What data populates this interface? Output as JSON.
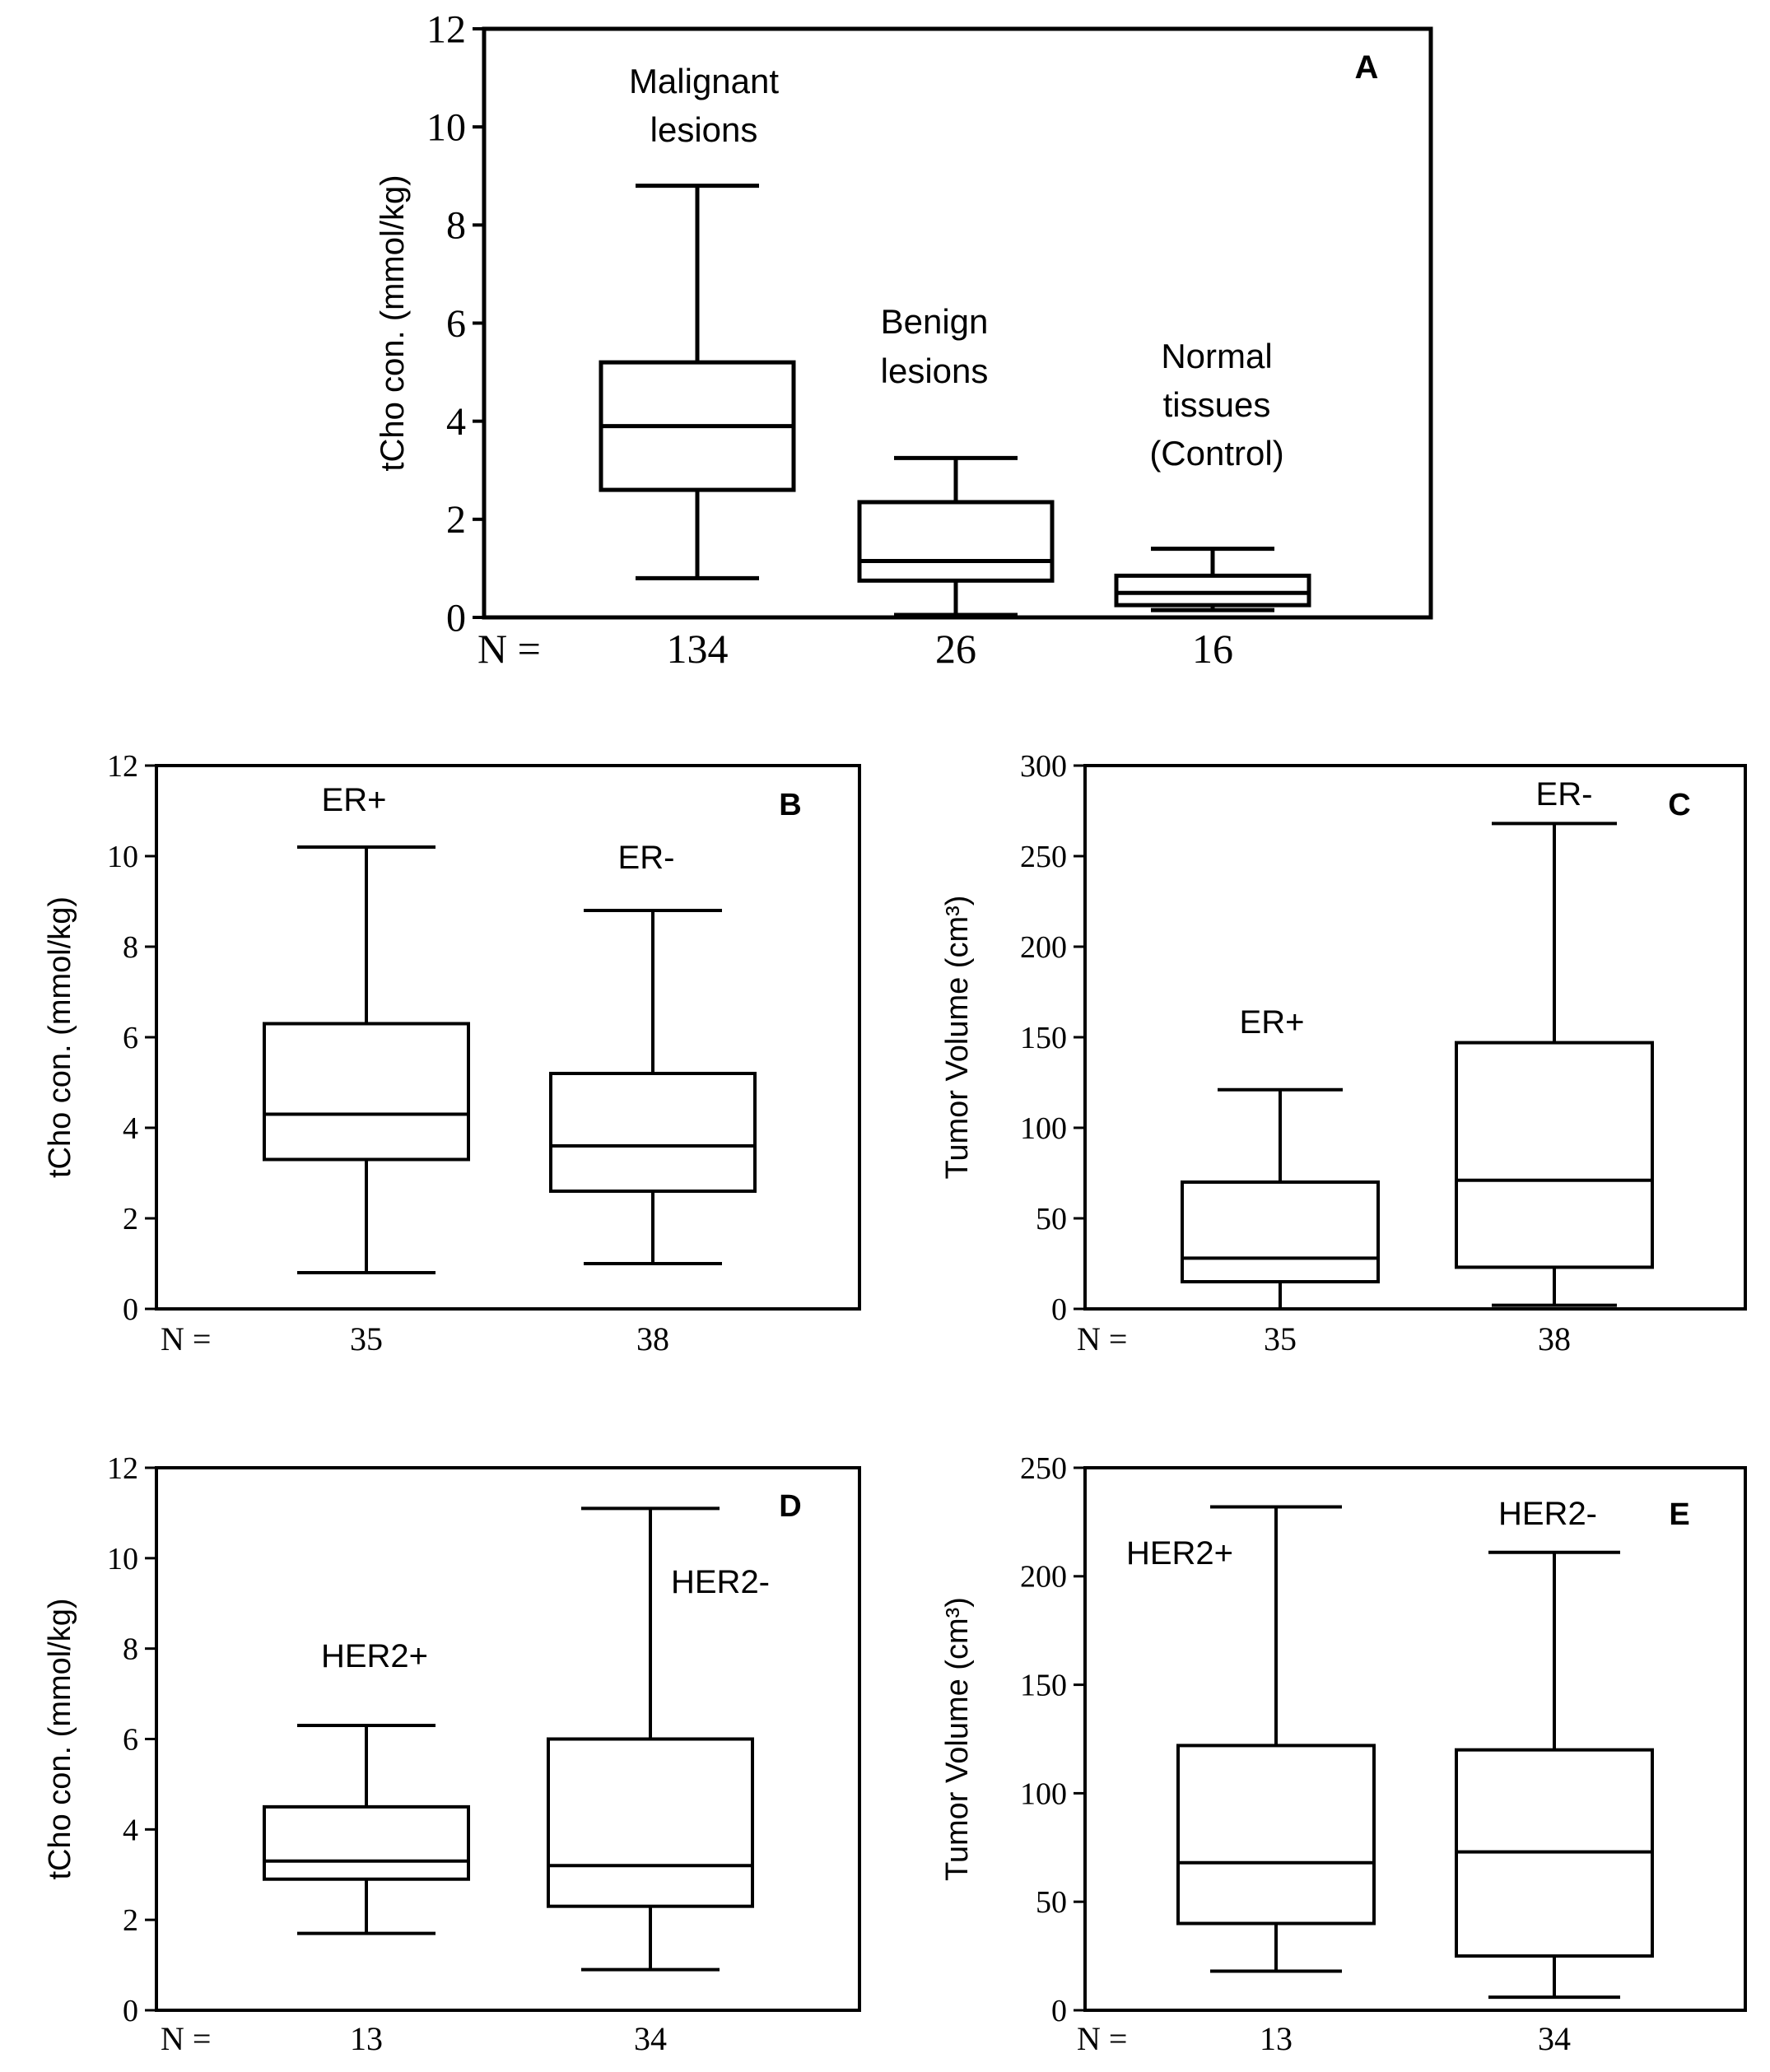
{
  "figure": {
    "colors": {
      "ink": "#000000",
      "background": "#ffffff"
    }
  },
  "chart_data": [
    {
      "id": "A",
      "type": "boxplot",
      "panel_label": "A",
      "ylabel": "tCho con.  (mmol/kg)",
      "ylim": [
        0,
        12
      ],
      "yticks": [
        0,
        2,
        4,
        6,
        8,
        10,
        12
      ],
      "n_label": "N =",
      "groups": [
        {
          "label_lines": [
            "Malignant",
            "lesions"
          ],
          "n": "134",
          "whisker_low": 0.8,
          "q1": 2.6,
          "median": 3.9,
          "q3": 5.2,
          "whisker_high": 8.8
        },
        {
          "label_lines": [
            "Benign",
            "lesions"
          ],
          "n": "26",
          "whisker_low": 0.05,
          "q1": 0.75,
          "median": 1.15,
          "q3": 2.35,
          "whisker_high": 3.25
        },
        {
          "label_lines": [
            "Normal",
            "tissues",
            "(Control)"
          ],
          "n": "16",
          "whisker_low": 0.15,
          "q1": 0.25,
          "median": 0.5,
          "q3": 0.85,
          "whisker_high": 1.4
        }
      ]
    },
    {
      "id": "B",
      "type": "boxplot",
      "panel_label": "B",
      "ylabel": "tCho con.  (mmol/kg)",
      "ylim": [
        0,
        12
      ],
      "yticks": [
        0,
        2,
        4,
        6,
        8,
        10,
        12
      ],
      "n_label": "N =",
      "groups": [
        {
          "label_lines": [
            "ER+"
          ],
          "n": "35",
          "whisker_low": 0.8,
          "q1": 3.3,
          "median": 4.3,
          "q3": 6.3,
          "whisker_high": 10.2
        },
        {
          "label_lines": [
            "ER-"
          ],
          "n": "38",
          "whisker_low": 1.0,
          "q1": 2.6,
          "median": 3.6,
          "q3": 5.2,
          "whisker_high": 8.8
        }
      ]
    },
    {
      "id": "C",
      "type": "boxplot",
      "panel_label": "C",
      "ylabel": "Tumor Volume  (cm³)",
      "ylim": [
        0,
        300
      ],
      "yticks": [
        0,
        50,
        100,
        150,
        200,
        250,
        300
      ],
      "n_label": "N =",
      "groups": [
        {
          "label_lines": [
            "ER+"
          ],
          "n": "35",
          "whisker_low": 0,
          "q1": 15,
          "median": 28,
          "q3": 70,
          "whisker_high": 121
        },
        {
          "label_lines": [
            "ER-"
          ],
          "n": "38",
          "whisker_low": 2,
          "q1": 23,
          "median": 71,
          "q3": 147,
          "whisker_high": 268
        }
      ]
    },
    {
      "id": "D",
      "type": "boxplot",
      "panel_label": "D",
      "ylabel": "tCho con.  (mmol/kg)",
      "ylim": [
        0,
        12
      ],
      "yticks": [
        0,
        2,
        4,
        6,
        8,
        10,
        12
      ],
      "n_label": "N =",
      "groups": [
        {
          "label_lines": [
            "HER2+"
          ],
          "n": "13",
          "whisker_low": 1.7,
          "q1": 2.9,
          "median": 3.3,
          "q3": 4.5,
          "whisker_high": 6.3
        },
        {
          "label_lines": [
            "HER2-"
          ],
          "n": "34",
          "whisker_low": 0.9,
          "q1": 2.3,
          "median": 3.2,
          "q3": 6.0,
          "whisker_high": 11.1
        }
      ]
    },
    {
      "id": "E",
      "type": "boxplot",
      "panel_label": "E",
      "ylabel": "Tumor Volume  (cm³)",
      "ylim": [
        0,
        250
      ],
      "yticks": [
        0,
        50,
        100,
        150,
        200,
        250
      ],
      "n_label": "N =",
      "groups": [
        {
          "label_lines": [
            "HER2+"
          ],
          "n": "13",
          "whisker_low": 18,
          "q1": 40,
          "median": 68,
          "q3": 122,
          "whisker_high": 232
        },
        {
          "label_lines": [
            "HER2-"
          ],
          "n": "34",
          "whisker_low": 6,
          "q1": 25,
          "median": 73,
          "q3": 120,
          "whisker_high": 211
        }
      ]
    }
  ]
}
